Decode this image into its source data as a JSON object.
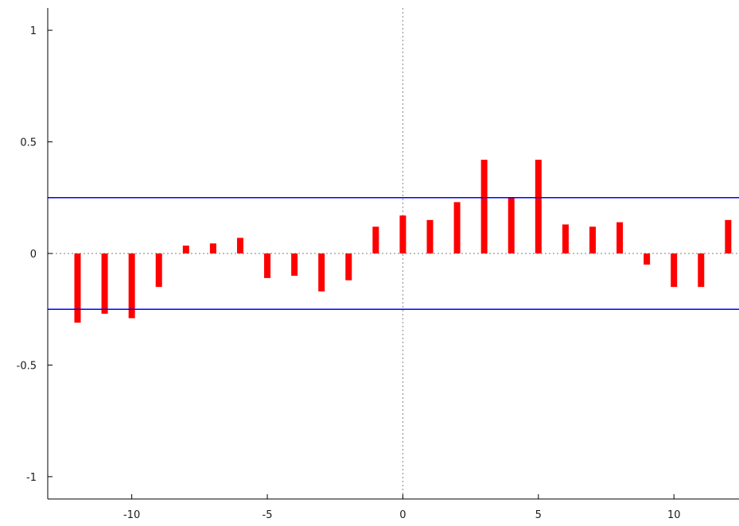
{
  "chart_data": {
    "type": "bar",
    "x": [
      -12,
      -11,
      -10,
      -9,
      -8,
      -7,
      -6,
      -5,
      -4,
      -3,
      -2,
      -1,
      0,
      1,
      2,
      3,
      4,
      5,
      6,
      7,
      8,
      9,
      10,
      11,
      12
    ],
    "values": [
      -0.31,
      -0.27,
      -0.29,
      -0.15,
      0.035,
      0.045,
      0.07,
      -0.11,
      -0.1,
      -0.17,
      -0.12,
      0.12,
      0.17,
      0.15,
      0.23,
      0.42,
      0.25,
      0.42,
      0.13,
      0.12,
      0.14,
      -0.05,
      -0.15,
      -0.15,
      0.15
    ],
    "confidence_band": 0.25,
    "xlim": [
      -13.1,
      12.4
    ],
    "ylim": [
      -1.1,
      1.1
    ],
    "xticks": [
      -10,
      -5,
      0,
      5,
      10
    ],
    "yticks": [
      -1,
      -0.5,
      0,
      0.5,
      1
    ],
    "xtick_labels": [
      "-10",
      "-5",
      "0",
      "5",
      "10"
    ],
    "ytick_labels": [
      "-1",
      "-0.5",
      "0",
      "0.5",
      "1"
    ],
    "title": "",
    "xlabel": "",
    "ylabel": "",
    "colors": {
      "bars": "#ff0000",
      "band": "#0000ff",
      "zero_line": "#999999",
      "axes": "#000000"
    }
  }
}
